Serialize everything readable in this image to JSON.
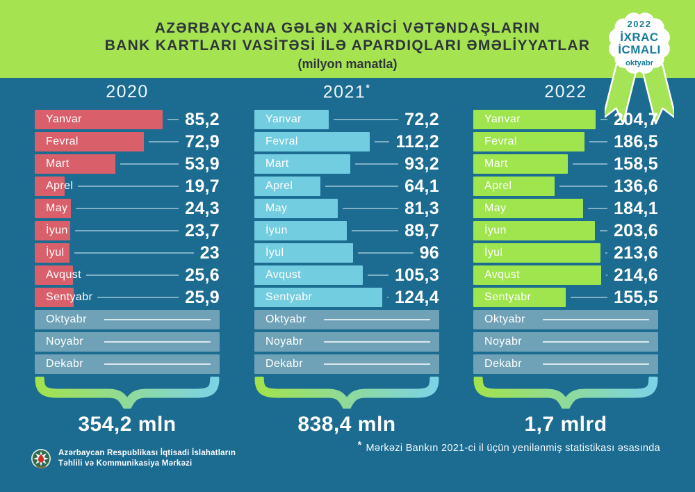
{
  "header": {
    "title_line1": "AZƏRBAYCANA GƏLƏN XARİCİ VƏTƏNDAŞLARIN",
    "title_line2": "BANK KARTLARI VASİTƏSİ İLƏ APARDIQLARI ƏMƏLİYYATLAR",
    "subtitle": "(milyon manatla)"
  },
  "badge": {
    "year": "2022",
    "title_line1": "İXRAC",
    "title_line2": "İCMALI",
    "month": "oktyabr"
  },
  "chart_data": {
    "type": "bar",
    "orientation": "horizontal",
    "unit": "milyon manat",
    "categories": [
      "Yanvar",
      "Fevral",
      "Mart",
      "Aprel",
      "May",
      "İyun",
      "İyul",
      "Avqust",
      "Sentyabr",
      "Oktyabr",
      "Noyabr",
      "Dekabr"
    ],
    "no_data_categories": [
      "Oktyabr",
      "Noyabr",
      "Dekabr"
    ],
    "series": [
      {
        "year": "2020",
        "year_suffix": "",
        "bar_color": "#d9606b",
        "values": [
          85.2,
          72.9,
          53.9,
          19.7,
          24.3,
          23.7,
          23,
          25.6,
          25.9
        ],
        "value_labels": [
          "85,2",
          "72,9",
          "53,9",
          "19,7",
          "24,3",
          "23,7",
          "23",
          "25,6",
          "25,9"
        ],
        "total": "354,2 mln"
      },
      {
        "year": "2021",
        "year_suffix": "*",
        "bar_color": "#72cde0",
        "values": [
          72.2,
          112.2,
          93.2,
          64.1,
          81.3,
          89.7,
          96,
          105.3,
          124.4
        ],
        "value_labels": [
          "72,2",
          "112,2",
          "93,2",
          "64,1",
          "81,3",
          "89,7",
          "96",
          "105,3",
          "124,4"
        ],
        "total": "838,4 mln"
      },
      {
        "year": "2022",
        "year_suffix": "",
        "bar_color": "#9fe64e",
        "values": [
          204.7,
          186.5,
          158.5,
          136.6,
          184.1,
          203.6,
          213.6,
          214.6,
          155.5
        ],
        "value_labels": [
          "204,7",
          "186,5",
          "158,5",
          "136,6",
          "184,1",
          "203,6",
          "213,6",
          "214,6",
          "155,5"
        ],
        "total": "1,7 mlrd"
      }
    ]
  },
  "footnote_marker": "*",
  "footnote": "Mərkəzi Bankın 2021-ci il üçün yenilənmiş statistikası əsasında",
  "footer": {
    "org_line1": "Azərbaycan Respublikası İqtisadi İslahatların",
    "org_line2": "Təhlili və Kommunikasiya Mərkəzi"
  },
  "colors": {
    "background": "#1c6b91",
    "header_bg": "#a6e351",
    "pending_bar": "#6fa2b7",
    "badge_text": "#177a99",
    "brace_start": "#a2e24e",
    "brace_end": "#7cd3e4",
    "bar_2020": "#d9606b",
    "bar_2021": "#72cde0",
    "bar_2022": "#9fe64e"
  }
}
